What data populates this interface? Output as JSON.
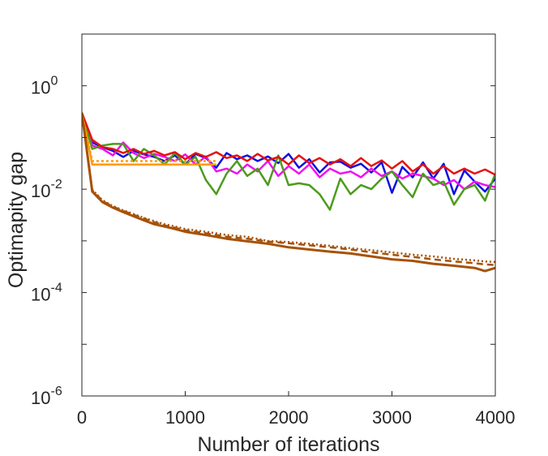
{
  "chart_data": {
    "type": "line",
    "title": "",
    "xlabel": "Number of iterations",
    "ylabel": "Optimapity gap",
    "xlim": [
      0,
      4000
    ],
    "ylim_log10": [
      -6,
      1
    ],
    "yscale": "log",
    "grid": false,
    "xticks": [
      {
        "value": 0,
        "label": "0"
      },
      {
        "value": 1000,
        "label": "1000"
      },
      {
        "value": 2000,
        "label": "2000"
      },
      {
        "value": 3000,
        "label": "3000"
      },
      {
        "value": 4000,
        "label": "4000"
      }
    ],
    "yticks": [
      {
        "exp": 0,
        "base": "10",
        "sup": "0"
      },
      {
        "exp": -2,
        "base": "10",
        "sup": "-2"
      },
      {
        "exp": -4,
        "base": "10",
        "sup": "-4"
      },
      {
        "exp": -6,
        "base": "10",
        "sup": "-6"
      }
    ],
    "series": [
      {
        "color": "#1010e0",
        "dash": "",
        "width": 2.5,
        "x": [
          0,
          100,
          200,
          300,
          400,
          500,
          600,
          700,
          800,
          900,
          1000,
          1100,
          1200,
          1300,
          1400,
          1500,
          1600,
          1700,
          1800,
          1900,
          2000,
          2100,
          2200,
          2300,
          2400,
          2500,
          2600,
          2700,
          2800,
          2900,
          3000,
          3100,
          3200,
          3300,
          3400,
          3500,
          3600,
          3700,
          3800,
          3900,
          4000
        ],
        "y": [
          0.3,
          0.08,
          0.065,
          0.055,
          0.042,
          0.055,
          0.047,
          0.042,
          0.035,
          0.045,
          0.03,
          0.048,
          0.04,
          0.026,
          0.05,
          0.038,
          0.045,
          0.035,
          0.043,
          0.032,
          0.048,
          0.026,
          0.038,
          0.021,
          0.033,
          0.034,
          0.026,
          0.031,
          0.021,
          0.033,
          0.0085,
          0.027,
          0.017,
          0.033,
          0.016,
          0.031,
          0.008,
          0.023,
          0.014,
          0.009,
          0.016
        ]
      },
      {
        "color": "#f010f0",
        "dash": "",
        "width": 2.5,
        "x": [
          0,
          100,
          200,
          300,
          400,
          500,
          600,
          700,
          800,
          900,
          1000,
          1100,
          1200,
          1300,
          1400,
          1500,
          1600,
          1700,
          1800,
          1900,
          2000,
          2100,
          2200,
          2300,
          2400,
          2500,
          2600,
          2700,
          2800,
          2900,
          3000,
          3100,
          3200,
          3300,
          3400,
          3500,
          3600,
          3700,
          3800,
          3900,
          4000
        ],
        "y": [
          0.3,
          0.07,
          0.06,
          0.045,
          0.08,
          0.05,
          0.04,
          0.048,
          0.042,
          0.035,
          0.047,
          0.03,
          0.043,
          0.022,
          0.025,
          0.02,
          0.03,
          0.022,
          0.035,
          0.018,
          0.028,
          0.02,
          0.03,
          0.017,
          0.025,
          0.02,
          0.022,
          0.017,
          0.025,
          0.018,
          0.022,
          0.016,
          0.02,
          0.018,
          0.016,
          0.012,
          0.015,
          0.01,
          0.014,
          0.012,
          0.011
        ]
      },
      {
        "color": "#4d9a1c",
        "dash": "",
        "width": 2.5,
        "x": [
          0,
          100,
          200,
          300,
          400,
          500,
          600,
          700,
          800,
          900,
          1000,
          1100,
          1200,
          1300,
          1400,
          1500,
          1600,
          1700,
          1800,
          1900,
          2000,
          2100,
          2200,
          2300,
          2400,
          2500,
          2600,
          2700,
          2800,
          2900,
          3000,
          3100,
          3200,
          3300,
          3400,
          3500,
          3600,
          3700,
          3800,
          3900,
          4000
        ],
        "y": [
          0.3,
          0.06,
          0.07,
          0.075,
          0.075,
          0.035,
          0.06,
          0.045,
          0.03,
          0.05,
          0.03,
          0.042,
          0.015,
          0.008,
          0.02,
          0.035,
          0.018,
          0.025,
          0.012,
          0.045,
          0.012,
          0.013,
          0.012,
          0.008,
          0.004,
          0.016,
          0.008,
          0.012,
          0.01,
          0.016,
          0.022,
          0.012,
          0.007,
          0.02,
          0.012,
          0.014,
          0.005,
          0.01,
          0.012,
          0.006,
          0.02
        ]
      },
      {
        "color": "#e81010",
        "dash": "",
        "width": 2.5,
        "x": [
          0,
          100,
          200,
          300,
          400,
          500,
          600,
          700,
          800,
          900,
          1000,
          1100,
          1200,
          1300,
          1400,
          1500,
          1600,
          1700,
          1800,
          1900,
          2000,
          2100,
          2200,
          2300,
          2400,
          2500,
          2600,
          2700,
          2800,
          2900,
          3000,
          3100,
          3200,
          3300,
          3400,
          3500,
          3600,
          3700,
          3800,
          3900,
          4000
        ],
        "y": [
          0.3,
          0.09,
          0.065,
          0.06,
          0.05,
          0.06,
          0.048,
          0.055,
          0.045,
          0.052,
          0.038,
          0.05,
          0.042,
          0.052,
          0.04,
          0.045,
          0.035,
          0.048,
          0.036,
          0.042,
          0.03,
          0.045,
          0.032,
          0.04,
          0.03,
          0.038,
          0.028,
          0.04,
          0.028,
          0.036,
          0.025,
          0.035,
          0.022,
          0.03,
          0.02,
          0.028,
          0.02,
          0.025,
          0.02,
          0.024,
          0.019
        ]
      },
      {
        "color": "#ff9a00",
        "dash": "",
        "width": 2.5,
        "x": [
          0,
          100,
          200,
          400,
          700,
          1000,
          1300
        ],
        "y": [
          0.3,
          0.03,
          0.03,
          0.03,
          0.03,
          0.03,
          0.03
        ]
      },
      {
        "color": "#ff9a00",
        "dash": "3 3",
        "width": 2.5,
        "x": [
          0,
          100,
          200,
          400,
          700,
          1000,
          1300
        ],
        "y": [
          0.3,
          0.035,
          0.035,
          0.035,
          0.035,
          0.035,
          0.035
        ]
      },
      {
        "color": "#a65208",
        "dash": "",
        "width": 3,
        "x": [
          0,
          100,
          200,
          300,
          400,
          500,
          600,
          700,
          800,
          900,
          1000,
          1200,
          1400,
          1600,
          1800,
          2000,
          2200,
          2400,
          2600,
          2800,
          3000,
          3200,
          3400,
          3600,
          3800,
          3900,
          4000
        ],
        "y": [
          0.3,
          0.009,
          0.0056,
          0.0044,
          0.0036,
          0.003,
          0.0025,
          0.0021,
          0.0019,
          0.0017,
          0.0015,
          0.0013,
          0.0011,
          0.00098,
          0.00088,
          0.00075,
          0.00068,
          0.00062,
          0.00057,
          0.0005,
          0.00044,
          0.00041,
          0.00036,
          0.00033,
          0.0003,
          0.00026,
          0.0003
        ]
      },
      {
        "color": "#a65208",
        "dash": "8 5",
        "width": 2.5,
        "x": [
          0,
          100,
          200,
          300,
          400,
          500,
          600,
          700,
          800,
          900,
          1000,
          1200,
          1400,
          1600,
          1800,
          2000,
          2200,
          2400,
          2600,
          2800,
          3000,
          3200,
          3400,
          3600,
          3800,
          3900,
          4000
        ],
        "y": [
          0.3,
          0.0095,
          0.0059,
          0.0046,
          0.0038,
          0.0032,
          0.0027,
          0.0023,
          0.002,
          0.0018,
          0.0016,
          0.0014,
          0.0012,
          0.0011,
          0.00097,
          0.0009,
          0.00082,
          0.00075,
          0.00068,
          0.0006,
          0.00054,
          0.00049,
          0.00044,
          0.0004,
          0.00037,
          0.00035,
          0.00034
        ]
      },
      {
        "color": "#a65208",
        "dash": "2 3",
        "width": 2.5,
        "x": [
          0,
          100,
          200,
          300,
          400,
          500,
          600,
          700,
          800,
          900,
          1000,
          1200,
          1400,
          1600,
          1800,
          2000,
          2200,
          2400,
          2600,
          2800,
          3000,
          3200,
          3400,
          3600,
          3800,
          3900,
          4000
        ],
        "y": [
          0.3,
          0.0098,
          0.0061,
          0.0047,
          0.0039,
          0.0033,
          0.0028,
          0.0024,
          0.0021,
          0.0019,
          0.0017,
          0.0015,
          0.0013,
          0.0012,
          0.001,
          0.00095,
          0.00088,
          0.0008,
          0.00072,
          0.00066,
          0.0006,
          0.00054,
          0.0005,
          0.00045,
          0.00042,
          0.0004,
          0.00039
        ]
      }
    ]
  }
}
